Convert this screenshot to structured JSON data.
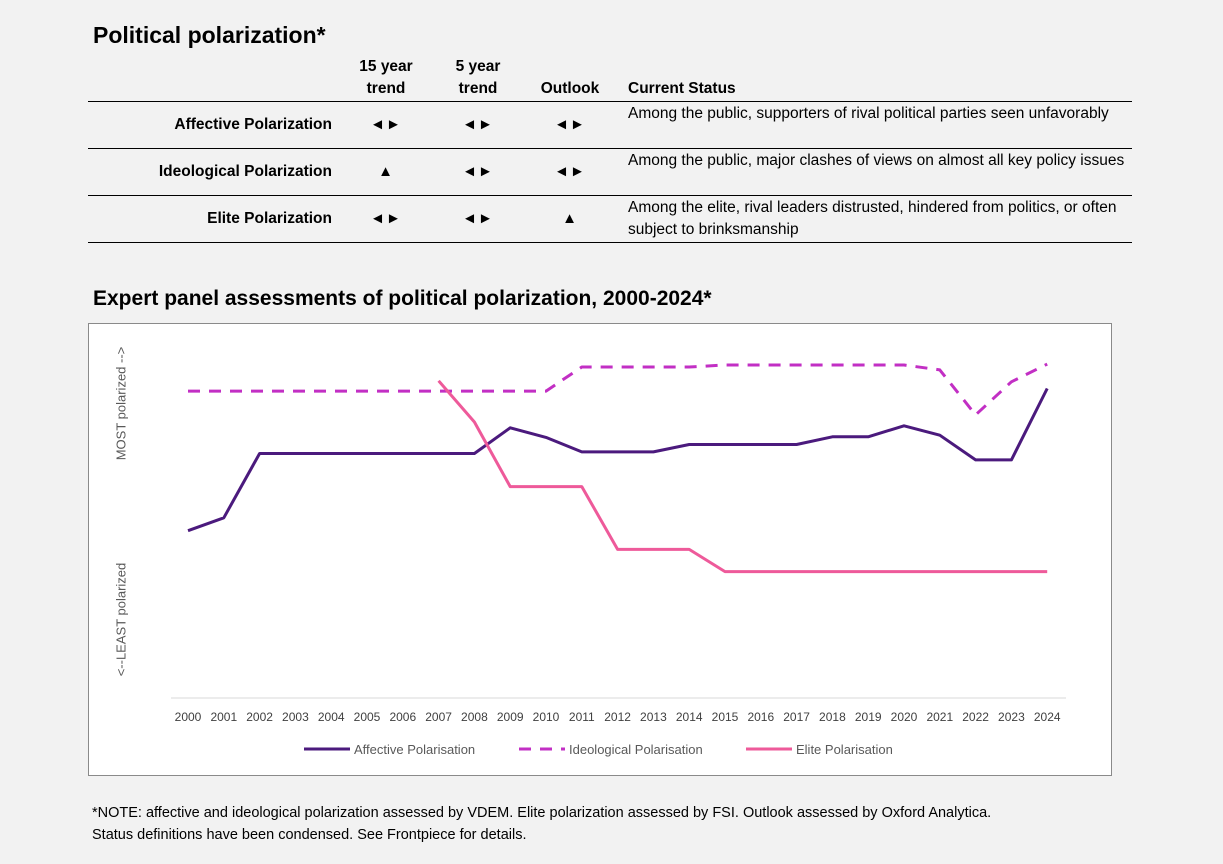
{
  "title": "Political polarization*",
  "table": {
    "headers": [
      "",
      "15 year trend",
      "5 year trend",
      "Outlook",
      "Current Status"
    ],
    "rows": [
      {
        "label": "Affective Polarization",
        "trend15": "◄►",
        "trend5": "◄►",
        "outlook": "◄►",
        "status": "Among the public, supporters of rival political parties seen unfavorably"
      },
      {
        "label": "Ideological Polarization",
        "trend15": "▲",
        "trend5": "◄►",
        "outlook": "◄►",
        "status": "Among the public, major clashes of views on almost all key policy issues"
      },
      {
        "label": "Elite Polarization",
        "trend15": "◄►",
        "trend5": "◄►",
        "outlook": "▲",
        "status": "Among the elite, rival leaders distrusted, hindered from politics, or often subject to brinksmanship"
      }
    ]
  },
  "chart_title": "Expert panel assessments of political polarization, 2000-2024*",
  "chart_data": {
    "type": "line",
    "title": "",
    "ylabel_top": "MOST polarized -->",
    "ylabel_bottom": "<--LEAST polarized",
    "x": [
      "2000",
      "2001",
      "2002",
      "2003",
      "2004",
      "2005",
      "2006",
      "2007",
      "2008",
      "2009",
      "2010",
      "2011",
      "2012",
      "2013",
      "2014",
      "2015",
      "2016",
      "2017",
      "2018",
      "2019",
      "2020",
      "2021",
      "2022",
      "2023",
      "2024"
    ],
    "ylim": [
      0,
      100
    ],
    "series": [
      {
        "name": "Affective Polarisation",
        "color": "#4b1a7d",
        "dash": "solid",
        "values": [
          52,
          56,
          76,
          76,
          76,
          76,
          76,
          76,
          76,
          84,
          81,
          76.5,
          76.5,
          76.5,
          78.8,
          78.8,
          78.8,
          78.8,
          81.2,
          81.2,
          84.6,
          81.7,
          74,
          74,
          96.2
        ]
      },
      {
        "name": "Ideological Polarisation",
        "color": "#c22fc4",
        "dash": "dashed",
        "values": [
          95.4,
          95.4,
          95.4,
          95.4,
          95.4,
          95.4,
          95.4,
          95.4,
          95.4,
          95.4,
          95.4,
          102.9,
          102.9,
          102.9,
          102.9,
          103.5,
          103.5,
          103.5,
          103.5,
          103.5,
          103.5,
          102,
          88,
          98.3,
          103.8
        ]
      },
      {
        "name": "Elite Polarisation",
        "color": "#ee5a9a",
        "dash": "solid",
        "values": [
          null,
          null,
          null,
          null,
          null,
          null,
          null,
          98.6,
          85.8,
          65.7,
          65.7,
          65.7,
          46.2,
          46.2,
          46.2,
          39.3,
          39.3,
          39.3,
          39.3,
          39.3,
          39.3,
          39.3,
          39.3,
          39.3,
          39.3
        ]
      }
    ]
  },
  "note_lines": [
    "*NOTE: affective and ideological polarization assessed by VDEM. Elite polarization assessed by FSI. Outlook assessed by Oxford Analytica.",
    "Status definitions have been condensed. See Frontpiece for details."
  ]
}
